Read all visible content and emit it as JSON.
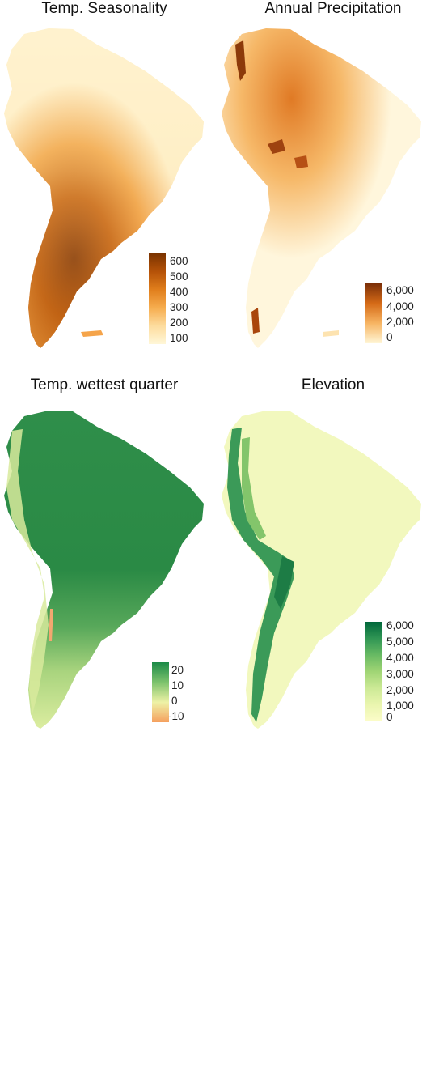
{
  "panels": [
    {
      "title": "Temp. Seasonality",
      "legend": {
        "ticks": [
          "600",
          "500",
          "400",
          "300",
          "200",
          "100"
        ],
        "colors": [
          "#7a3300",
          "#b55208",
          "#e07e1c",
          "#f6ad4f",
          "#fddc9e",
          "#fff7d8"
        ]
      }
    },
    {
      "title": "Annual Precipitation",
      "legend": {
        "ticks": [
          "6,000",
          "4,000",
          "2,000",
          "0"
        ],
        "colors": [
          "#7a2f08",
          "#d56a17",
          "#f7b563",
          "#fff6d6"
        ]
      }
    },
    {
      "title": "Temp. wettest quarter",
      "legend": {
        "ticks": [
          "20",
          "10",
          "0",
          "-10"
        ],
        "colors": [
          "#1b8a47",
          "#7cc26c",
          "#eef2a6",
          "#f5a05e"
        ]
      }
    },
    {
      "title": "Elevation",
      "legend": {
        "ticks": [
          "6,000",
          "5,000",
          "4,000",
          "3,000",
          "2,000",
          "1,000",
          "0"
        ],
        "colors": [
          "#00673a",
          "#2f9554",
          "#67b963",
          "#9fd474",
          "#cbe995",
          "#e9f5ae",
          "#fbfcc8"
        ]
      }
    }
  ]
}
